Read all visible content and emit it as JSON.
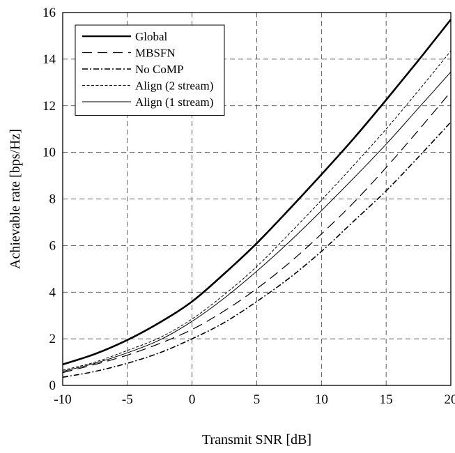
{
  "chart_data": {
    "type": "line",
    "title": "",
    "xlabel": "Transmit SNR [dB]",
    "ylabel": "Achievable rate [bps/Hz]",
    "xlim": [
      -10,
      20
    ],
    "ylim": [
      0,
      16
    ],
    "xticks": [
      -10,
      -5,
      0,
      5,
      10,
      15,
      20
    ],
    "yticks": [
      0,
      2,
      4,
      6,
      8,
      10,
      12,
      14,
      16
    ],
    "grid": true,
    "legend_position": "top-left",
    "x": [
      -10,
      -7.5,
      -5,
      -2.5,
      0,
      2.5,
      5,
      7.5,
      10,
      12.5,
      15,
      17.5,
      20
    ],
    "series": [
      {
        "name": "Global",
        "style": "thick-solid",
        "values": [
          0.9,
          1.35,
          1.95,
          2.7,
          3.6,
          4.8,
          6.1,
          7.55,
          9.05,
          10.6,
          12.25,
          13.95,
          15.7
        ]
      },
      {
        "name": "MBSFN",
        "style": "long-dash",
        "values": [
          0.55,
          0.9,
          1.3,
          1.8,
          2.4,
          3.2,
          4.15,
          5.25,
          6.5,
          7.85,
          9.35,
          10.95,
          12.6
        ]
      },
      {
        "name": "No CoMP",
        "style": "dash-dot",
        "values": [
          0.35,
          0.6,
          0.95,
          1.4,
          2.0,
          2.7,
          3.6,
          4.6,
          5.75,
          7.05,
          8.35,
          9.8,
          11.3
        ]
      },
      {
        "name": "Align (2 stream)",
        "style": "short-dash",
        "values": [
          0.65,
          1.0,
          1.5,
          2.05,
          2.85,
          3.9,
          5.1,
          6.5,
          7.95,
          9.45,
          11.0,
          12.65,
          14.35
        ]
      },
      {
        "name": "Align (1 stream)",
        "style": "thin-solid",
        "values": [
          0.6,
          0.95,
          1.4,
          1.95,
          2.75,
          3.75,
          4.9,
          6.15,
          7.5,
          8.9,
          10.35,
          11.9,
          13.45
        ]
      }
    ]
  }
}
